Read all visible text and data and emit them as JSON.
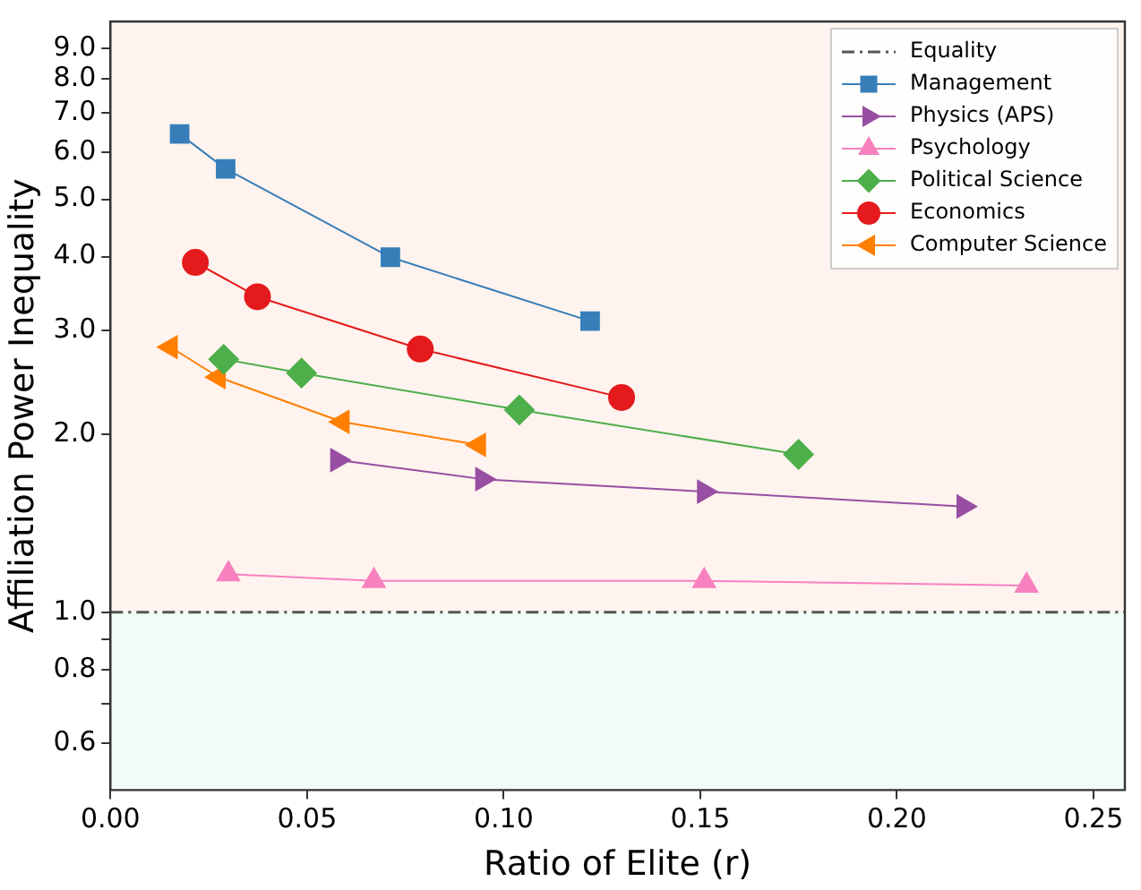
{
  "chart_data": {
    "type": "line",
    "xlabel": "Ratio of Elite (r)",
    "ylabel": "Affiliation Power Inequality",
    "log": "y",
    "xlim": [
      0,
      0.258
    ],
    "xticks": [
      {
        "value": 0,
        "label": "0.00"
      },
      {
        "value": 0.05,
        "label": "0.05"
      },
      {
        "value": 0.1,
        "label": "0.10"
      },
      {
        "value": 0.15,
        "label": "0.15"
      },
      {
        "value": 0.2,
        "label": "0.20"
      },
      {
        "value": 0.25,
        "label": "0.25"
      }
    ],
    "ylim": [
      0.5,
      10
    ],
    "yticks": [
      {
        "value": 0.6,
        "label": "0.6"
      },
      {
        "value": 0.7,
        "label": null
      },
      {
        "value": 0.8,
        "label": "0.8"
      },
      {
        "value": 0.9,
        "label": null
      },
      {
        "value": 1,
        "label": "1.0"
      },
      {
        "value": 2,
        "label": "2.0"
      },
      {
        "value": 3,
        "label": "3.0"
      },
      {
        "value": 4,
        "label": "4.0"
      },
      {
        "value": 5,
        "label": "5.0"
      },
      {
        "value": 6,
        "label": "6.0"
      },
      {
        "value": 7,
        "label": "7.0"
      },
      {
        "value": 8,
        "label": "8.0"
      },
      {
        "value": 9,
        "label": "9.0"
      }
    ],
    "grid": false,
    "legend": "top right",
    "ref_lines": [
      {
        "axis": "y",
        "value": 1,
        "label": "Equality",
        "color": "#555555",
        "line_style": "dashed"
      }
    ],
    "bands": [
      {
        "axis": "y",
        "from": 1,
        "to": 10,
        "color": "#fef3ee"
      },
      {
        "axis": "y",
        "from": 0.5,
        "to": 1,
        "color": "#f2fcf6"
      }
    ],
    "series": [
      {
        "name": "Management",
        "color": "#377eb8",
        "marker": "square",
        "x": [
          0.0176,
          0.0293,
          0.0712,
          0.122
        ],
        "values": [
          6.45,
          5.63,
          3.99,
          3.11
        ]
      },
      {
        "name": "Physics (APS)",
        "color": "#984ea3",
        "marker": "triangle-right",
        "x": [
          0.0577,
          0.0946,
          0.151,
          0.217
        ],
        "values": [
          1.81,
          1.68,
          1.6,
          1.51
        ]
      },
      {
        "name": "Psychology",
        "color": "#f781bf",
        "marker": "triangle",
        "x": [
          0.03,
          0.067,
          0.151,
          0.233
        ],
        "values": [
          1.16,
          1.13,
          1.13,
          1.11
        ]
      },
      {
        "name": "Political Science",
        "color": "#4daf4a",
        "marker": "diamond",
        "x": [
          0.0288,
          0.0486,
          0.104,
          0.175
        ],
        "values": [
          2.68,
          2.54,
          2.2,
          1.85
        ]
      },
      {
        "name": "Economics",
        "color": "#e41a1c",
        "marker": "circle",
        "x": [
          0.0216,
          0.0374,
          0.0788,
          0.13
        ],
        "values": [
          3.91,
          3.42,
          2.79,
          2.31
        ]
      },
      {
        "name": "Computer Science",
        "color": "#ff7f00",
        "marker": "triangle-left",
        "x": [
          0.0153,
          0.0275,
          0.059,
          0.0937
        ],
        "values": [
          2.81,
          2.5,
          2.1,
          1.92
        ]
      }
    ]
  }
}
